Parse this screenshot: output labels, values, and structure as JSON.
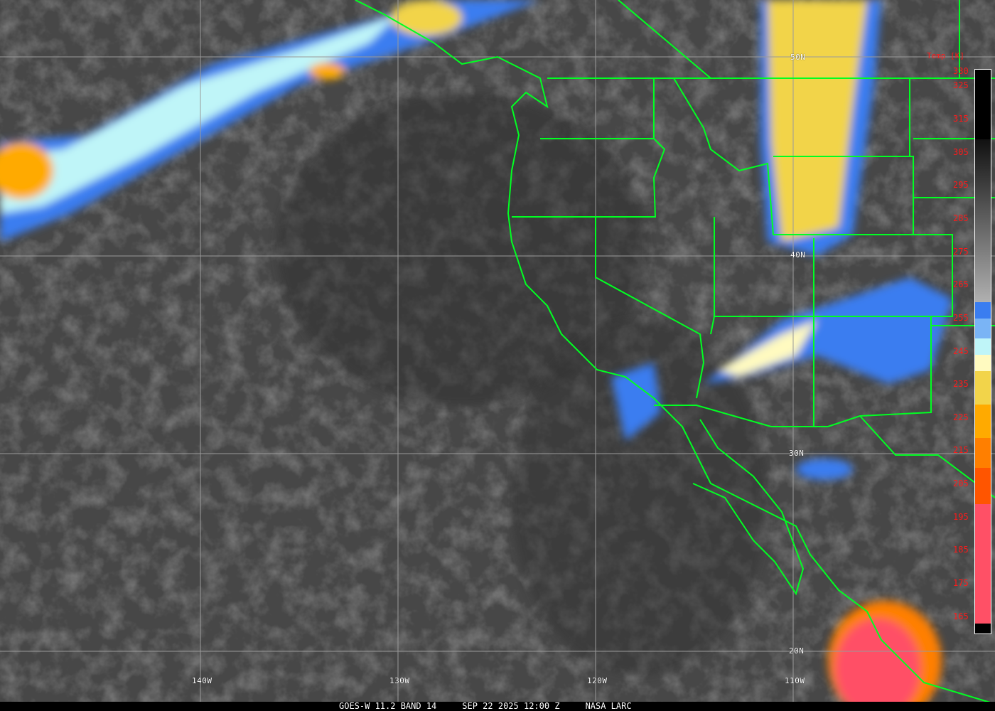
{
  "map": {
    "latitude_labels": [
      "50N",
      "40N",
      "30N",
      "20N"
    ],
    "longitude_labels": [
      "140W",
      "130W",
      "120W",
      "110W"
    ],
    "border_color": "#00ff22",
    "grid_color": "#9a9a9a"
  },
  "colorbar": {
    "title": "Temp [K]",
    "tick_labels": [
      "330",
      "325",
      "315",
      "305",
      "295",
      "285",
      "275",
      "265",
      "255",
      "245",
      "235",
      "225",
      "215",
      "205",
      "195",
      "185",
      "175",
      "165"
    ],
    "segments": [
      {
        "from": 330,
        "to": 309,
        "color": "#000000"
      },
      {
        "from": 309,
        "to": 260,
        "gradient": [
          "#111111",
          "#b0b0b0"
        ]
      },
      {
        "from": 260,
        "to": 255,
        "color": "#3a7df0"
      },
      {
        "from": 255,
        "to": 249,
        "color": "#7ab4f5"
      },
      {
        "from": 249,
        "to": 244,
        "color": "#bff5f8"
      },
      {
        "from": 244,
        "to": 239,
        "color": "#fffac0"
      },
      {
        "from": 239,
        "to": 229,
        "color": "#f2d44a"
      },
      {
        "from": 229,
        "to": 219,
        "color": "#ffaa00"
      },
      {
        "from": 219,
        "to": 210,
        "color": "#ff7f00"
      },
      {
        "from": 210,
        "to": 199,
        "color": "#ff5500"
      },
      {
        "from": 199,
        "to": 163,
        "color": "#ff5066"
      },
      {
        "from": 163,
        "to": 160,
        "color": "#000000"
      }
    ]
  },
  "caption": {
    "satellite": "GOES-W 11.2 BAND 14",
    "datetime": "SEP 22 2025 12:00 Z",
    "credit": "NASA LARC"
  }
}
